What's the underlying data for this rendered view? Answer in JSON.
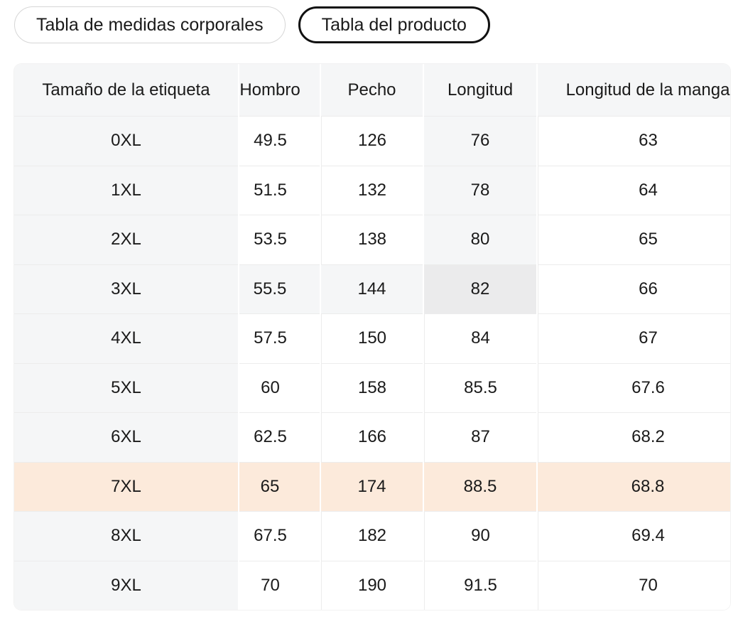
{
  "tabs": [
    {
      "label": "Tabla de medidas corporales",
      "selected": false
    },
    {
      "label": "Tabla del producto",
      "selected": true
    }
  ],
  "table": {
    "columns": [
      "Tamaño de la etiqueta",
      "Hombro",
      "Pecho",
      "Longitud",
      "Longitud de la manga"
    ],
    "rows": [
      {
        "size": "0XL",
        "values": [
          "49.5",
          "126",
          "76",
          "63"
        ]
      },
      {
        "size": "1XL",
        "values": [
          "51.5",
          "132",
          "78",
          "64"
        ]
      },
      {
        "size": "2XL",
        "values": [
          "53.5",
          "138",
          "80",
          "65"
        ]
      },
      {
        "size": "3XL",
        "values": [
          "55.5",
          "144",
          "82",
          "66"
        ]
      },
      {
        "size": "4XL",
        "values": [
          "57.5",
          "150",
          "84",
          "67"
        ]
      },
      {
        "size": "5XL",
        "values": [
          "60",
          "158",
          "85.5",
          "67.6"
        ]
      },
      {
        "size": "6XL",
        "values": [
          "62.5",
          "166",
          "87",
          "68.2"
        ]
      },
      {
        "size": "7XL",
        "values": [
          "65",
          "174",
          "88.5",
          "68.8"
        ]
      },
      {
        "size": "8XL",
        "values": [
          "67.5",
          "182",
          "90",
          "69.4"
        ]
      },
      {
        "size": "9XL",
        "values": [
          "70",
          "190",
          "91.5",
          "70"
        ]
      }
    ],
    "highlight": {
      "selected_row": "3XL",
      "selected_column": "Longitud",
      "selected_value": "82",
      "recommended_row": "7XL"
    },
    "colors": {
      "header_bg": "#f5f6f7",
      "highlight_path_bg": "#f5f6f7",
      "highlight_cell_bg": "#ebebec",
      "recommended_row_bg": "#fceadb",
      "grid_line": "#ececec",
      "tab_border": "#d6d6d6",
      "selected_tab_border": "#111111",
      "text": "#1a1a1a"
    }
  }
}
